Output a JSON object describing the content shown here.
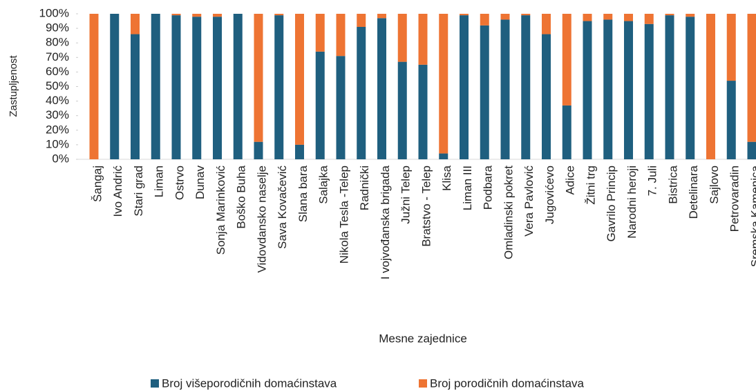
{
  "chart_data": {
    "type": "stacked_bar",
    "x_label": "Mesne zajednice",
    "y_label": "Zastupljenost",
    "categories": [
      "Šangaj",
      "Ivo Andrić",
      "Stari grad",
      "Liman",
      "Ostrvo",
      "Dunav",
      "Sonja Marinković",
      "Boško Buha",
      "Vidovdansko naselje",
      "Sava Kovačević",
      "Slana bara",
      "Salajka",
      "Nikola Tesla -Telep",
      "Radnički",
      "I vojvođanska brigada",
      "Južni Telep",
      "Bratstvo - Telep",
      "Klisa",
      "Liman III",
      "Podbara",
      "Omladinski pokret",
      "Vera Pavlović",
      "Jugovićevo",
      "Adice",
      "Žitni trg",
      "Gavrilo Princip",
      "Narodni heroji",
      "7. Juli",
      "Bistrica",
      "Detelinara",
      "Sajlovo",
      "Petrovaradin",
      "Sremska Kamenica"
    ],
    "series": [
      {
        "name": "Broj višeporodičnih domaćinstava",
        "color": "#1f5f7f",
        "values": [
          0,
          100,
          86,
          100,
          99,
          98,
          98,
          100,
          12,
          99,
          10,
          74,
          71,
          91,
          97,
          67,
          65,
          4,
          99,
          92,
          96,
          99,
          86,
          37,
          95,
          96,
          95,
          93,
          99,
          98,
          0,
          54,
          12
        ]
      },
      {
        "name": "Broj porodičnih domaćinstava",
        "color": "#ee7433",
        "values": [
          100,
          0,
          14,
          0,
          1,
          2,
          2,
          0,
          88,
          1,
          90,
          26,
          29,
          9,
          3,
          33,
          35,
          96,
          1,
          8,
          4,
          1,
          14,
          63,
          5,
          4,
          5,
          7,
          1,
          2,
          100,
          46,
          88
        ]
      }
    ],
    "ylim": [
      0,
      100
    ],
    "yticks": [
      {
        "value": 0,
        "label": "0%"
      },
      {
        "value": 10,
        "label": "10%"
      },
      {
        "value": 20,
        "label": "20%"
      },
      {
        "value": 30,
        "label": "30%"
      },
      {
        "value": 40,
        "label": "40%"
      },
      {
        "value": 50,
        "label": "50%"
      },
      {
        "value": 60,
        "label": "60%"
      },
      {
        "value": 70,
        "label": "70%"
      },
      {
        "value": 80,
        "label": "80%"
      },
      {
        "value": 90,
        "label": "90%"
      },
      {
        "value": 100,
        "label": "100%"
      }
    ],
    "legend": "bottom"
  }
}
